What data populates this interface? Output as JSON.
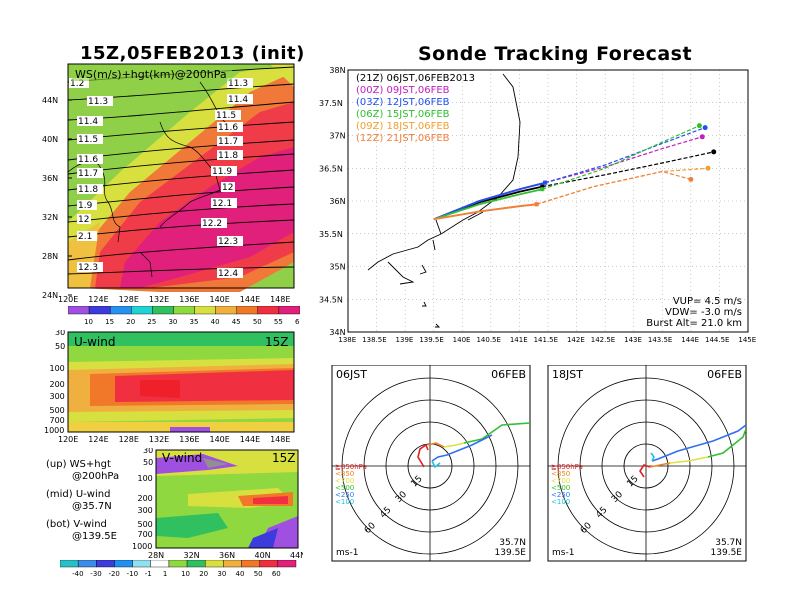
{
  "left_title": "15Z,05FEB2013 (init)",
  "right_title": "Sonde Tracking Forecast",
  "colors": {
    "scale": [
      "#a050e0",
      "#3c3cdc",
      "#2890f0",
      "#20d2d2",
      "#30c060",
      "#90d840",
      "#d8e040",
      "#f0b040",
      "#f07828",
      "#f03040",
      "#e0207a"
    ],
    "track": [
      "#000000",
      "#c020c0",
      "#2050f0",
      "#30c030",
      "#f0a030",
      "#f08040"
    ]
  },
  "map_panel": {
    "label": "WS(m/s)+hgt(km)@200hPa",
    "lat_ticks": [
      "44N",
      "40N",
      "36N",
      "32N",
      "28N",
      "24N"
    ],
    "lon_ticks": [
      "120E",
      "124E",
      "128E",
      "132E",
      "136E",
      "140E",
      "144E",
      "148E"
    ],
    "contours_left": [
      "1.2",
      "11.3",
      "11.4",
      "11.5",
      "11.6",
      "11.7",
      "11.8",
      "1.9",
      "12",
      "2.1",
      "12.3"
    ],
    "contours_right": [
      "11.3",
      "11.4",
      "11.5",
      "11.6",
      "11.7",
      "11.8",
      "11.9",
      "12",
      "12.1",
      "12.2",
      "12.3",
      "12.4"
    ]
  },
  "colorbar_top": [
    "10",
    "15",
    "20",
    "25",
    "30",
    "35",
    "40",
    "45",
    "50",
    "55",
    "60"
  ],
  "u_panel": {
    "label": "U-wind",
    "time": "15Z",
    "p_ticks": [
      "30",
      "50",
      "100",
      "200",
      "300",
      "500",
      "700",
      "1000"
    ],
    "lon_ticks": [
      "120E",
      "124E",
      "128E",
      "132E",
      "136E",
      "140E",
      "144E",
      "148E"
    ]
  },
  "v_panel": {
    "label": "V-wind",
    "time": "15Z",
    "p_ticks": [
      "30",
      "50",
      "100",
      "200",
      "300",
      "500",
      "700",
      "1000"
    ],
    "lat_ticks": [
      "28N",
      "32N",
      "36N",
      "40N",
      "44N"
    ]
  },
  "colorbar_bottom": [
    "-40",
    "-30",
    "-20",
    "-10",
    "-1",
    "1",
    "10",
    "20",
    "30",
    "40",
    "50",
    "60"
  ],
  "side_notes": [
    "(up) WS+hgt",
    "@200hPa",
    "(mid) U-wind",
    "@35.7N",
    "(bot) V-wind",
    "@139.5E"
  ],
  "track_panel": {
    "lat_ticks": [
      "38N",
      "37.5N",
      "37N",
      "36.5N",
      "36N",
      "35.5N",
      "35N",
      "34.5N",
      "34N"
    ],
    "lon_ticks": [
      "138E",
      "138.5E",
      "139E",
      "139.5E",
      "140E",
      "140.5E",
      "141E",
      "141.5E",
      "142E",
      "142.5E",
      "143E",
      "143.5E",
      "144E",
      "144.5E",
      "145E"
    ],
    "legend": [
      {
        "label": "(21Z) 06JST,06FEB2013"
      },
      {
        "label": "(00Z) 09JST,06FEB"
      },
      {
        "label": "(03Z) 12JST,06FEB"
      },
      {
        "label": "(06Z) 15JST,06FEB"
      },
      {
        "label": "(09Z) 18JST,06FEB"
      },
      {
        "label": "(12Z) 21JST,06FEB"
      }
    ],
    "params": [
      "VUP= 4.5 m/s",
      "VDW= -3.0 m/s",
      "Burst Alt= 21.0 km"
    ]
  },
  "hodo_left": {
    "time": "06JST",
    "date": "06FEB",
    "rings": [
      "15",
      "30",
      "45",
      "60"
    ],
    "unit": "ms-1",
    "loc1": "35.7N",
    "loc2": "139.5E"
  },
  "hodo_right": {
    "time": "18JST",
    "date": "06FEB",
    "rings": [
      "15",
      "30",
      "45",
      "60"
    ],
    "unit": "ms-1",
    "loc1": "35.7N",
    "loc2": "139.5E"
  },
  "hodo_levels": [
    "≧850hPa",
    "<850",
    "<700",
    "<500",
    "<250",
    "<100"
  ],
  "chart_data": [
    {
      "type": "line",
      "title": "Sonde Tracking Forecast",
      "xlim": [
        138,
        145
      ],
      "ylim": [
        34,
        38
      ],
      "series": [
        {
          "name": "(21Z) 06JST,06FEB2013",
          "x": [
            139.5,
            140.3,
            141.0,
            141.4,
            142.5,
            143.5,
            144.4
          ],
          "y": [
            35.72,
            35.98,
            36.14,
            36.22,
            36.4,
            36.58,
            36.75
          ]
        },
        {
          "name": "(00Z) 09JST,06FEB",
          "x": [
            139.5,
            140.3,
            141.0,
            141.45,
            142.5,
            143.5,
            144.2
          ],
          "y": [
            35.72,
            36.0,
            36.18,
            36.28,
            36.52,
            36.8,
            36.98
          ]
        },
        {
          "name": "(03Z) 12JST,06FEB",
          "x": [
            139.5,
            140.3,
            141.0,
            141.45,
            142.5,
            143.5,
            144.25
          ],
          "y": [
            35.72,
            36.0,
            36.18,
            36.28,
            36.55,
            36.88,
            37.12
          ]
        },
        {
          "name": "(06Z) 15JST,06FEB",
          "x": [
            139.5,
            140.3,
            141.0,
            141.4,
            142.5,
            143.5,
            144.15
          ],
          "y": [
            35.72,
            35.95,
            36.1,
            36.18,
            36.5,
            36.9,
            37.15
          ]
        },
        {
          "name": "(09Z) 18JST,06FEB",
          "x": [
            139.5,
            140.3,
            141.0,
            141.3,
            142.3,
            143.5,
            144.3
          ],
          "y": [
            35.72,
            35.84,
            35.92,
            35.95,
            36.22,
            36.45,
            36.5
          ]
        },
        {
          "name": "(12Z) 21JST,06FEB",
          "x": [
            139.5,
            140.3,
            141.0,
            141.3,
            142.3,
            143.5,
            144.0
          ],
          "y": [
            35.72,
            35.84,
            35.92,
            35.95,
            36.22,
            36.45,
            36.33
          ]
        }
      ]
    }
  ]
}
